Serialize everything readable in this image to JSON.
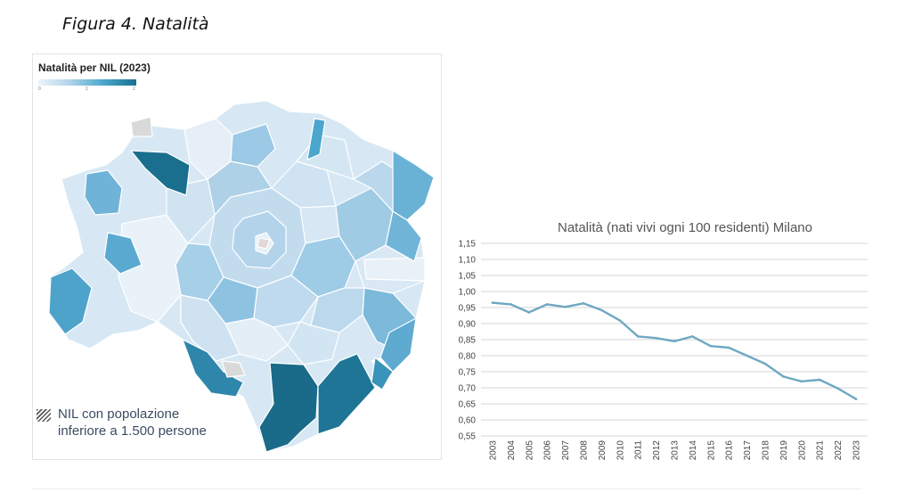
{
  "figure_caption": "Figura 4. Natalità",
  "map": {
    "title": "Natalità per NIL (2023)",
    "scale_ticks": [
      "0",
      "1",
      "2"
    ],
    "legend_text": "NIL con popolazione\ninferiore a 1.500 persone",
    "colors": {
      "lowest": "#eef4fa",
      "low": "#aed3ea",
      "mid": "#4aa6cc",
      "high": "#17708f",
      "hatched": "#d9d9d9"
    }
  },
  "chart_data": {
    "type": "line",
    "title": "Natalità (nati vivi ogni 100 residenti) Milano",
    "xlabel": "",
    "ylabel": "",
    "x": [
      "2003",
      "2004",
      "2005",
      "2006",
      "2007",
      "2008",
      "2009",
      "2010",
      "2011",
      "2012",
      "2013",
      "2014",
      "2015",
      "2016",
      "2017",
      "2018",
      "2019",
      "2020",
      "2021",
      "2022",
      "2023"
    ],
    "series": [
      {
        "values": [
          0.965,
          0.96,
          0.935,
          0.96,
          0.952,
          0.963,
          0.942,
          0.91,
          0.86,
          0.855,
          0.845,
          0.86,
          0.83,
          0.825,
          0.8,
          0.775,
          0.735,
          0.72,
          0.725,
          0.698,
          0.665
        ],
        "color": "#6fa8c2"
      }
    ],
    "ylim": [
      0.55,
      1.15
    ],
    "ytick_labels": [
      "1,15",
      "1,10",
      "1,05",
      "1,00",
      "0,95",
      "0,90",
      "0,85",
      "0,80",
      "0,75",
      "0,70",
      "0,65",
      "0,60",
      "0,55"
    ],
    "grid": true,
    "legend": "none"
  }
}
